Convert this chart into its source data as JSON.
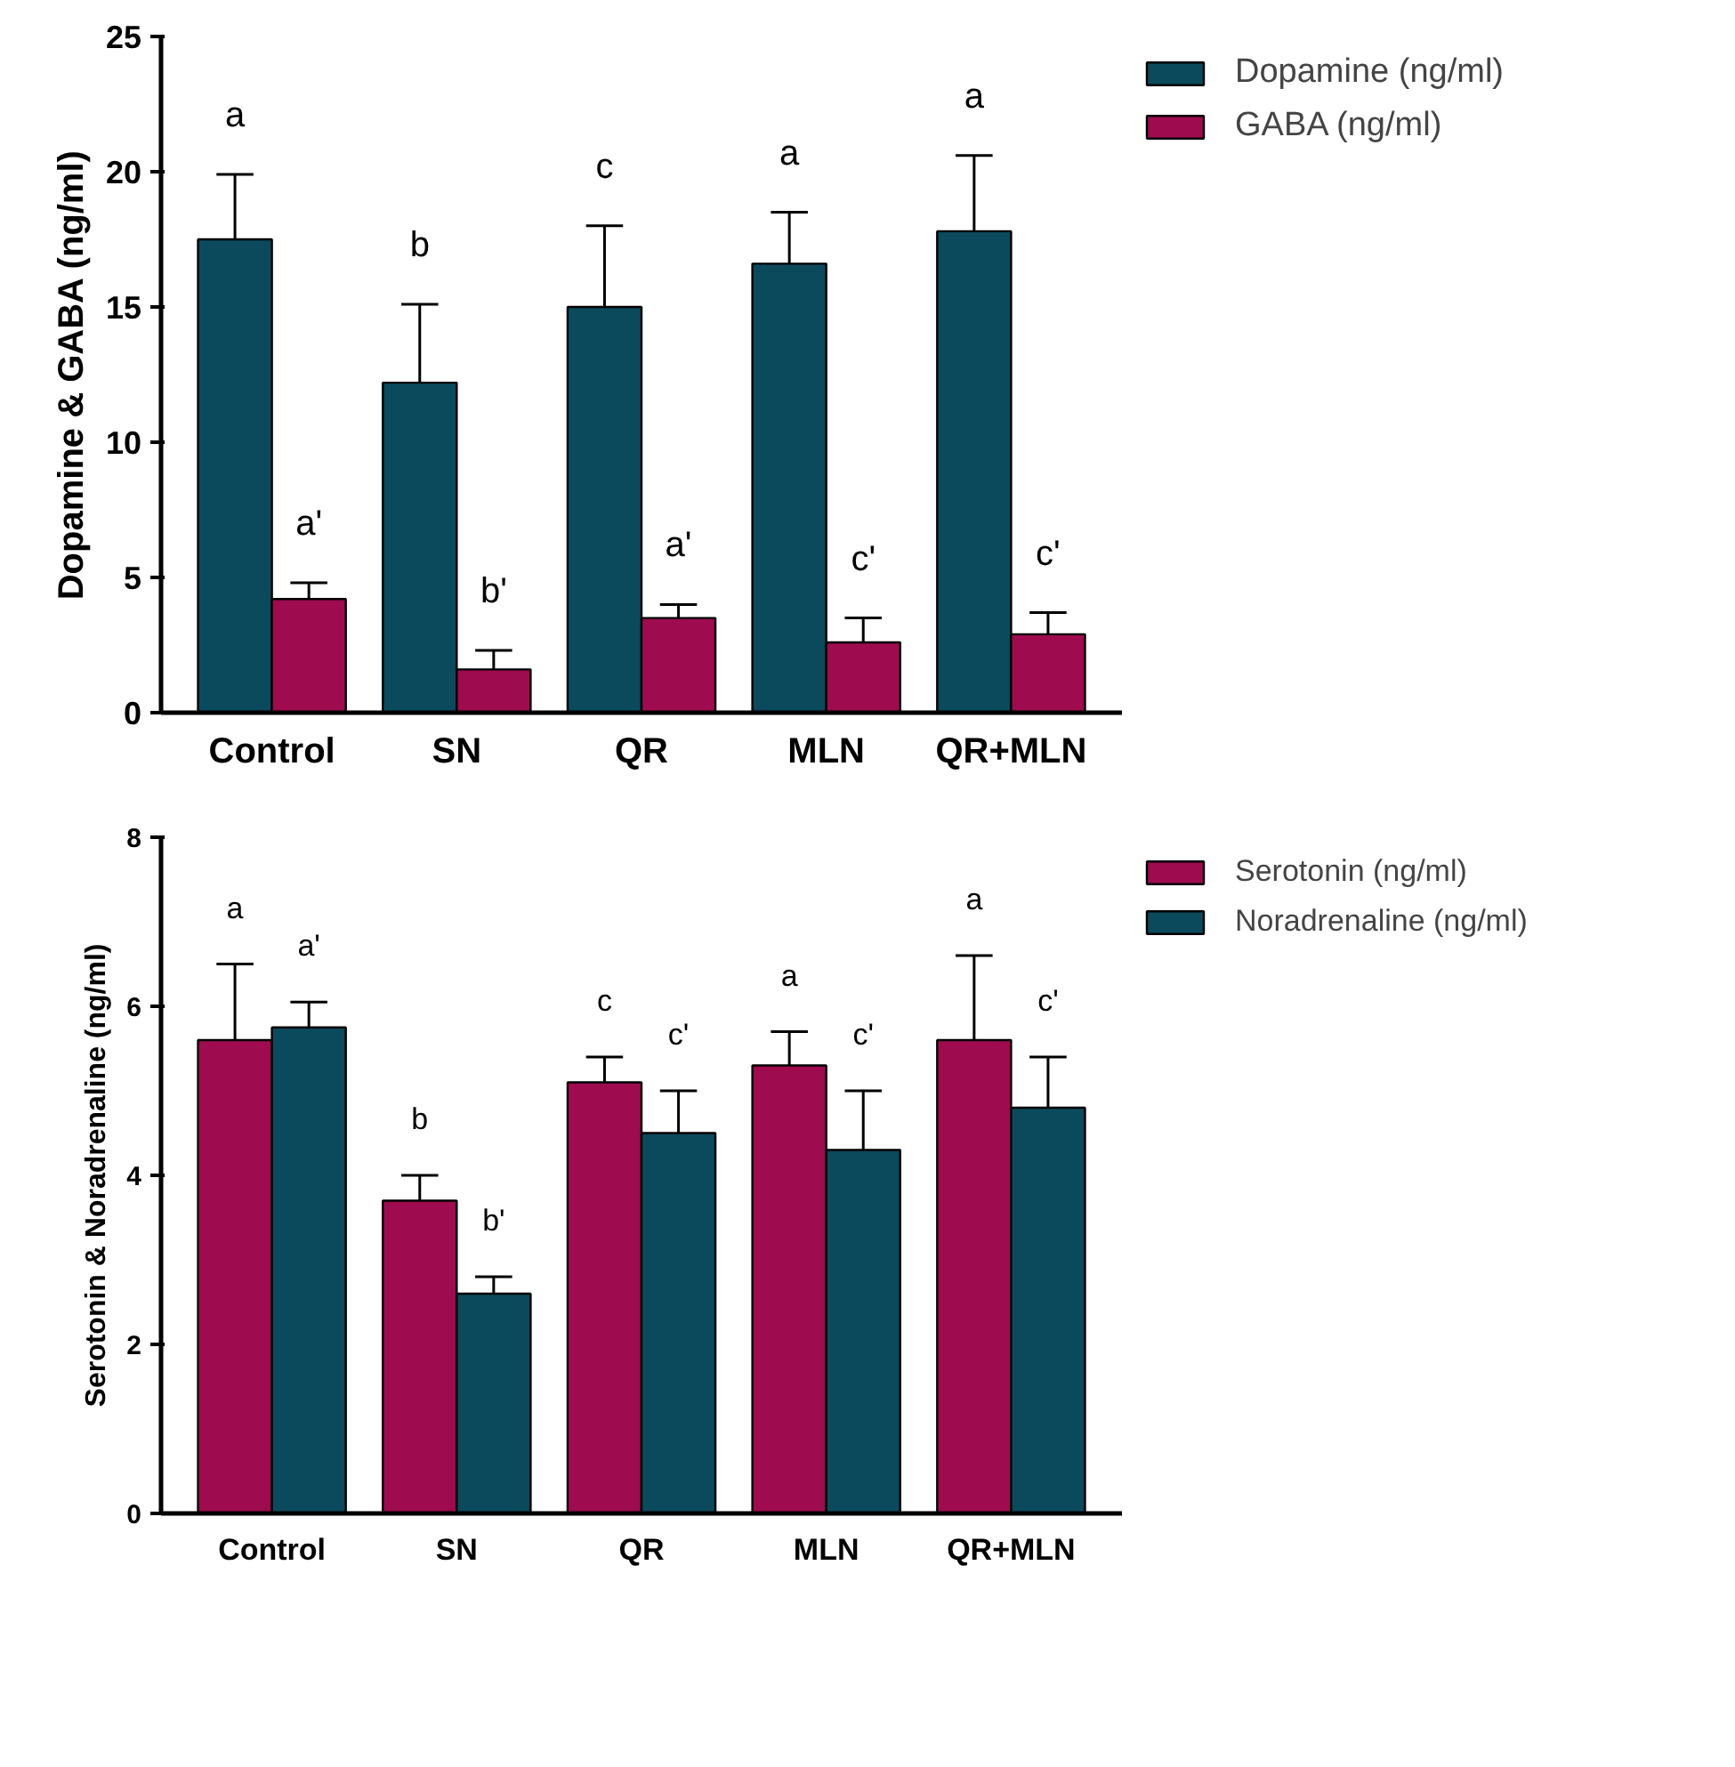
{
  "chart_data": [
    {
      "type": "bar",
      "ylabel": "Dopamine & GABA (ng/ml)",
      "categories": [
        "Control",
        "SN",
        "QR",
        "MLN",
        "QR+MLN"
      ],
      "ylim": [
        0,
        25
      ],
      "yticks": [
        0,
        5,
        10,
        15,
        20,
        25
      ],
      "grid": false,
      "legend": "right",
      "series": [
        {
          "name": "Dopamine (ng/ml)",
          "color": "#0b4a5c",
          "values": [
            17.5,
            12.2,
            15.0,
            16.6,
            17.8
          ],
          "errors": [
            [
              17.5,
              19.9
            ],
            [
              12.2,
              15.1
            ],
            [
              15.0,
              18.0
            ],
            [
              16.6,
              18.5
            ],
            [
              17.8,
              20.6
            ]
          ]
        },
        {
          "name": "GABA (ng/ml)",
          "color": "#9e0b4f",
          "values": [
            4.2,
            1.6,
            3.5,
            2.6,
            2.9
          ],
          "errors": [
            [
              4.2,
              4.8
            ],
            [
              1.6,
              2.3
            ],
            [
              3.5,
              4.0
            ],
            [
              2.6,
              3.5
            ],
            [
              2.9,
              3.7
            ]
          ]
        }
      ],
      "annotations": [
        "a",
        "b",
        "c",
        "a",
        "a",
        "a'",
        "b'",
        "a'",
        "c'",
        "c'"
      ]
    },
    {
      "type": "bar",
      "ylabel": "Serotonin & Noradrenaline (ng/ml)",
      "categories": [
        "Control",
        "SN",
        "QR",
        "MLN",
        "QR+MLN"
      ],
      "ylim": [
        0,
        8
      ],
      "yticks": [
        0,
        2,
        4,
        6,
        8
      ],
      "grid": false,
      "legend": "right",
      "series": [
        {
          "name": "Serotonin (ng/ml)",
          "color": "#9e0b4f",
          "values": [
            5.6,
            3.7,
            5.1,
            5.3,
            5.6
          ],
          "errors": [
            [
              5.6,
              6.5
            ],
            [
              3.7,
              4.0
            ],
            [
              5.1,
              5.4
            ],
            [
              5.3,
              5.7
            ],
            [
              5.6,
              6.6
            ]
          ]
        },
        {
          "name": "Noradrenaline (ng/ml)",
          "color": "#0b4a5c",
          "values": [
            5.75,
            2.6,
            4.5,
            4.3,
            4.8
          ],
          "errors": [
            [
              5.75,
              6.05
            ],
            [
              2.6,
              2.8
            ],
            [
              4.5,
              5.0
            ],
            [
              4.3,
              5.0
            ],
            [
              4.8,
              5.4
            ]
          ]
        }
      ],
      "annotations": [
        "a",
        "b",
        "c",
        "a",
        "a",
        "a'",
        "b'",
        "c'",
        "c'",
        "c'"
      ]
    }
  ]
}
